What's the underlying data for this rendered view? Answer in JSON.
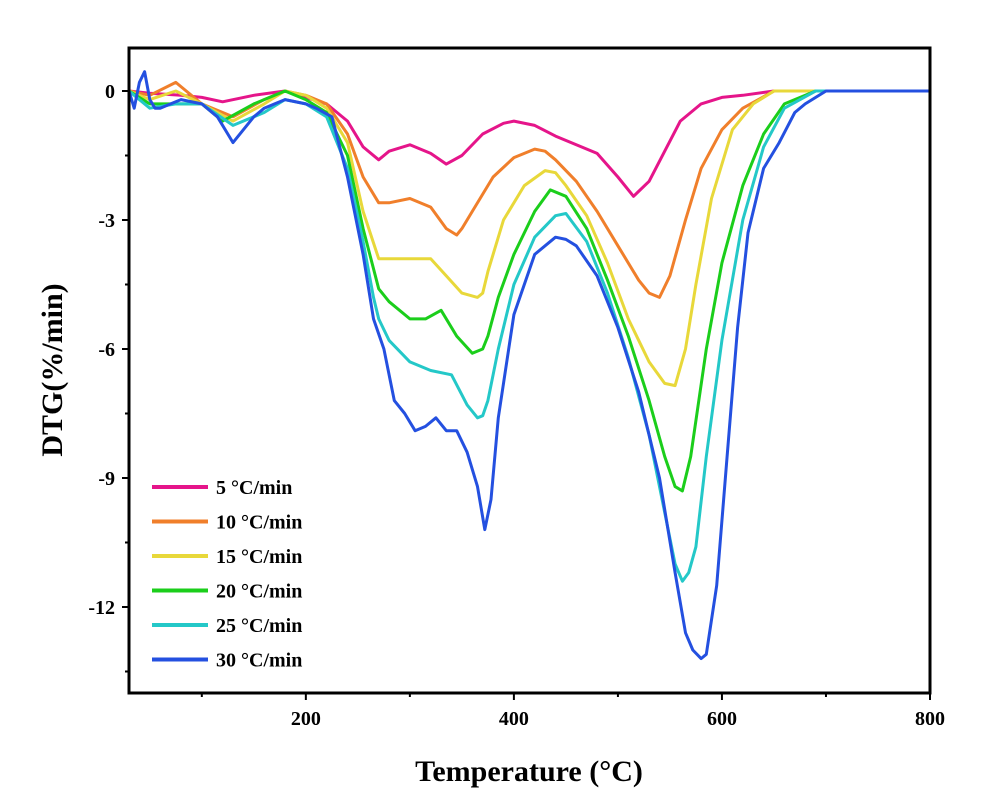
{
  "chart_data": {
    "type": "line",
    "xlabel": "Temperature (°C)",
    "ylabel": "DTG(%/min)",
    "xlim": [
      30,
      800
    ],
    "ylim": [
      -14,
      1
    ],
    "x_ticks": [
      200,
      400,
      600,
      800
    ],
    "y_ticks": [
      0,
      -3,
      -6,
      -9,
      -12
    ],
    "legend_position": "bottom-left",
    "grid": false,
    "series": [
      {
        "name": "5 °C/min",
        "color": "#e5158a",
        "x": [
          30,
          50,
          80,
          100,
          120,
          150,
          180,
          200,
          220,
          240,
          255,
          270,
          280,
          300,
          320,
          335,
          350,
          370,
          390,
          400,
          420,
          440,
          460,
          480,
          500,
          515,
          530,
          545,
          560,
          580,
          600,
          620,
          650,
          700,
          750,
          800
        ],
        "y": [
          0,
          -0.05,
          -0.1,
          -0.15,
          -0.25,
          -0.1,
          0,
          -0.15,
          -0.3,
          -0.7,
          -1.3,
          -1.6,
          -1.4,
          -1.25,
          -1.45,
          -1.7,
          -1.5,
          -1.0,
          -0.75,
          -0.7,
          -0.8,
          -1.05,
          -1.25,
          -1.45,
          -2.0,
          -2.45,
          -2.1,
          -1.4,
          -0.7,
          -0.3,
          -0.15,
          -0.1,
          0,
          0,
          0,
          0
        ]
      },
      {
        "name": "10 °C/min",
        "color": "#f07f2b",
        "x": [
          30,
          50,
          75,
          100,
          130,
          160,
          180,
          200,
          220,
          240,
          255,
          270,
          280,
          300,
          320,
          335,
          345,
          350,
          360,
          380,
          400,
          420,
          430,
          440,
          460,
          480,
          500,
          520,
          530,
          540,
          550,
          565,
          580,
          600,
          620,
          650,
          700,
          750,
          800
        ],
        "y": [
          0,
          -0.1,
          0.2,
          -0.3,
          -0.6,
          -0.2,
          0,
          -0.1,
          -0.3,
          -1.0,
          -2.0,
          -2.6,
          -2.6,
          -2.5,
          -2.7,
          -3.2,
          -3.35,
          -3.2,
          -2.8,
          -2.0,
          -1.55,
          -1.35,
          -1.4,
          -1.6,
          -2.1,
          -2.8,
          -3.6,
          -4.4,
          -4.7,
          -4.8,
          -4.3,
          -3.0,
          -1.8,
          -0.9,
          -0.4,
          0,
          0,
          0,
          0
        ]
      },
      {
        "name": "15 °C/min",
        "color": "#e8d83a",
        "x": [
          30,
          50,
          75,
          100,
          130,
          160,
          180,
          200,
          220,
          240,
          255,
          270,
          280,
          300,
          320,
          335,
          350,
          365,
          370,
          375,
          390,
          410,
          430,
          440,
          450,
          470,
          490,
          510,
          530,
          545,
          555,
          565,
          575,
          590,
          610,
          630,
          650,
          700,
          750,
          800
        ],
        "y": [
          0,
          -0.2,
          0,
          -0.3,
          -0.7,
          -0.3,
          0,
          -0.1,
          -0.4,
          -1.2,
          -2.8,
          -3.9,
          -3.9,
          -3.9,
          -3.9,
          -4.3,
          -4.7,
          -4.8,
          -4.7,
          -4.2,
          -3.0,
          -2.2,
          -1.85,
          -1.9,
          -2.2,
          -2.9,
          -4.0,
          -5.3,
          -6.3,
          -6.8,
          -6.85,
          -6.0,
          -4.5,
          -2.5,
          -0.9,
          -0.3,
          0,
          0,
          0,
          0
        ]
      },
      {
        "name": "20 °C/min",
        "color": "#1bce1b",
        "x": [
          30,
          50,
          75,
          100,
          120,
          150,
          180,
          200,
          220,
          240,
          255,
          270,
          280,
          300,
          315,
          330,
          345,
          360,
          370,
          375,
          385,
          400,
          420,
          435,
          450,
          470,
          490,
          510,
          530,
          545,
          555,
          562,
          570,
          585,
          600,
          620,
          640,
          660,
          690,
          750,
          800
        ],
        "y": [
          0,
          -0.3,
          -0.3,
          -0.3,
          -0.7,
          -0.3,
          0,
          -0.2,
          -0.5,
          -1.5,
          -3.2,
          -4.6,
          -4.9,
          -5.3,
          -5.3,
          -5.1,
          -5.7,
          -6.1,
          -6.0,
          -5.7,
          -4.8,
          -3.8,
          -2.8,
          -2.3,
          -2.45,
          -3.2,
          -4.4,
          -5.7,
          -7.2,
          -8.5,
          -9.2,
          -9.3,
          -8.5,
          -6.0,
          -4.0,
          -2.2,
          -1.0,
          -0.3,
          0,
          0,
          0
        ]
      },
      {
        "name": "25 °C/min",
        "color": "#24c8c8",
        "x": [
          30,
          50,
          75,
          100,
          130,
          160,
          180,
          200,
          220,
          240,
          255,
          265,
          270,
          280,
          300,
          320,
          340,
          355,
          365,
          370,
          375,
          385,
          400,
          420,
          440,
          450,
          470,
          490,
          510,
          530,
          545,
          555,
          562,
          568,
          575,
          585,
          600,
          620,
          640,
          660,
          690,
          750,
          800
        ],
        "y": [
          0,
          -0.4,
          -0.3,
          -0.3,
          -0.8,
          -0.5,
          -0.2,
          -0.3,
          -0.6,
          -1.8,
          -3.5,
          -4.8,
          -5.3,
          -5.8,
          -6.3,
          -6.5,
          -6.6,
          -7.3,
          -7.6,
          -7.55,
          -7.2,
          -6.0,
          -4.5,
          -3.4,
          -2.9,
          -2.85,
          -3.5,
          -4.7,
          -6.2,
          -8.0,
          -9.8,
          -11.0,
          -11.4,
          -11.2,
          -10.6,
          -8.5,
          -5.8,
          -3.0,
          -1.3,
          -0.4,
          0,
          0,
          0
        ]
      },
      {
        "name": "30 °C/min",
        "color": "#2450e0",
        "x": [
          30,
          35,
          40,
          45,
          50,
          55,
          60,
          70,
          80,
          100,
          115,
          125,
          130,
          140,
          150,
          160,
          170,
          180,
          200,
          210,
          225,
          240,
          255,
          265,
          275,
          285,
          295,
          305,
          315,
          325,
          335,
          345,
          355,
          365,
          372,
          378,
          385,
          400,
          420,
          440,
          450,
          460,
          480,
          500,
          520,
          540,
          555,
          565,
          572,
          580,
          585,
          595,
          605,
          615,
          625,
          640,
          655,
          670,
          680,
          700,
          750,
          800
        ],
        "y": [
          0,
          -0.4,
          0.2,
          0.45,
          -0.2,
          -0.4,
          -0.4,
          -0.3,
          -0.2,
          -0.3,
          -0.6,
          -1.0,
          -1.2,
          -0.9,
          -0.6,
          -0.4,
          -0.3,
          -0.2,
          -0.3,
          -0.4,
          -0.6,
          -2.0,
          -3.8,
          -5.3,
          -6.0,
          -7.2,
          -7.5,
          -7.9,
          -7.8,
          -7.6,
          -7.9,
          -7.9,
          -8.4,
          -9.2,
          -10.2,
          -9.5,
          -7.6,
          -5.2,
          -3.8,
          -3.4,
          -3.45,
          -3.6,
          -4.3,
          -5.5,
          -7.0,
          -9.0,
          -11.2,
          -12.6,
          -13.0,
          -13.2,
          -13.1,
          -11.5,
          -8.5,
          -5.5,
          -3.3,
          -1.8,
          -1.2,
          -0.5,
          -0.3,
          0,
          0,
          0
        ]
      }
    ]
  }
}
